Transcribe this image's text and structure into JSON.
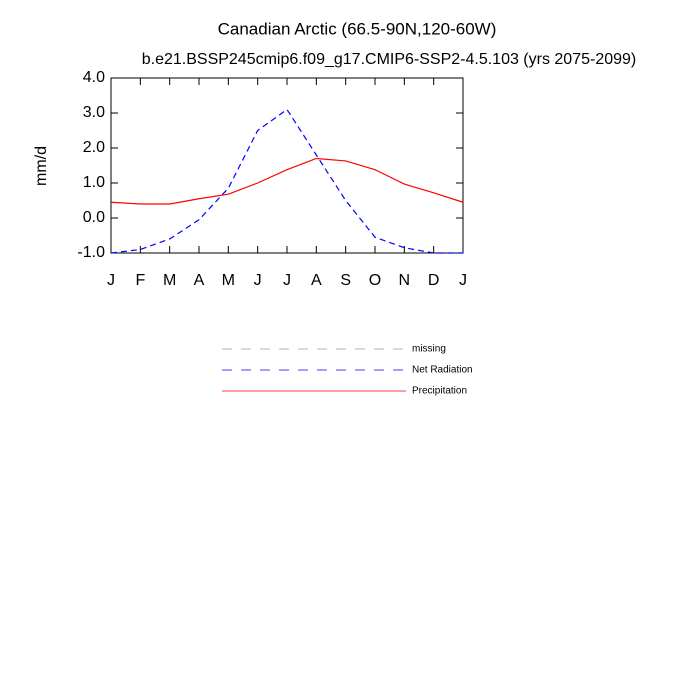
{
  "chart_data": {
    "type": "line",
    "title": "Canadian Arctic (66.5-90N,120-60W)",
    "subtitle": "b.e21.BSSP245cmip6.f09_g17.CMIP6-SSP2-4.5.103 (yrs 2075-2099)",
    "y_label": "mm/d",
    "categories": [
      "J",
      "F",
      "M",
      "A",
      "M",
      "J",
      "J",
      "A",
      "S",
      "O",
      "N",
      "D",
      "J"
    ],
    "series": [
      {
        "name": "missing",
        "color": "#999999",
        "dash": true,
        "values": [
          null,
          null,
          null,
          null,
          null,
          null,
          null,
          null,
          null,
          null,
          null,
          null,
          null
        ]
      },
      {
        "name": "Net Radiation",
        "color": "#0000ff",
        "dash": true,
        "values": [
          -1.0,
          -0.9,
          -0.6,
          -0.05,
          0.85,
          2.5,
          3.1,
          1.8,
          0.5,
          -0.55,
          -0.85,
          -1.0,
          -1.0
        ]
      },
      {
        "name": "Precipitation",
        "color": "#ff0000",
        "dash": false,
        "values": [
          0.45,
          0.4,
          0.4,
          0.55,
          0.68,
          1.0,
          1.38,
          1.7,
          1.63,
          1.38,
          0.97,
          0.72,
          0.45
        ]
      }
    ],
    "ylim": [
      -1.0,
      4.0
    ],
    "yticks": [
      {
        "value": -1,
        "label": "-1.0"
      },
      {
        "value": 0,
        "label": "0.0"
      },
      {
        "value": 1,
        "label": "1.0"
      },
      {
        "value": 2,
        "label": "2.0"
      },
      {
        "value": 3,
        "label": "3.0"
      },
      {
        "value": 4,
        "label": "4.0"
      }
    ]
  }
}
